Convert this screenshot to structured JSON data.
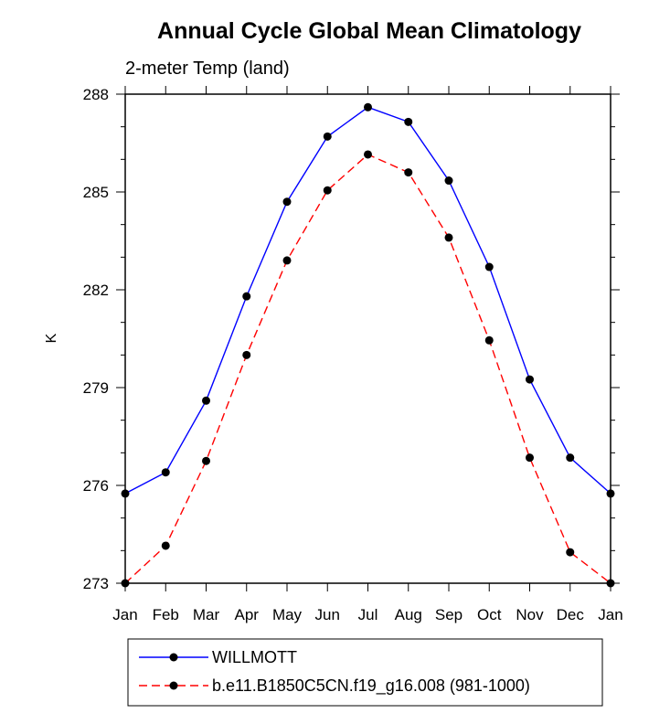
{
  "chart_data": {
    "type": "line",
    "title": "Annual Cycle Global Mean Climatology",
    "subtitle": "2-meter Temp (land)",
    "ylabel": "K",
    "xlabel": "",
    "categories": [
      "Jan",
      "Feb",
      "Mar",
      "Apr",
      "May",
      "Jun",
      "Jul",
      "Aug",
      "Sep",
      "Oct",
      "Nov",
      "Dec",
      "Jan"
    ],
    "ylim": [
      273,
      288
    ],
    "yticks": [
      "288",
      "285",
      "282",
      "279",
      "276",
      "273"
    ],
    "series": [
      {
        "name": "WILLMOTT",
        "color": "#0000ff",
        "dash": "solid",
        "values": [
          275.75,
          276.4,
          278.6,
          281.8,
          284.7,
          286.7,
          287.6,
          287.15,
          285.35,
          282.7,
          279.25,
          276.85,
          275.75
        ]
      },
      {
        "name": "b.e11.B1850C5CN.f19_g16.008 (981-1000)",
        "color": "#ff0000",
        "dash": "dashed",
        "values": [
          273.0,
          274.15,
          276.75,
          280.0,
          282.9,
          285.05,
          286.15,
          285.6,
          283.6,
          280.45,
          276.85,
          273.95,
          273.0
        ]
      }
    ],
    "grid": false,
    "legend_position": "bottom"
  }
}
